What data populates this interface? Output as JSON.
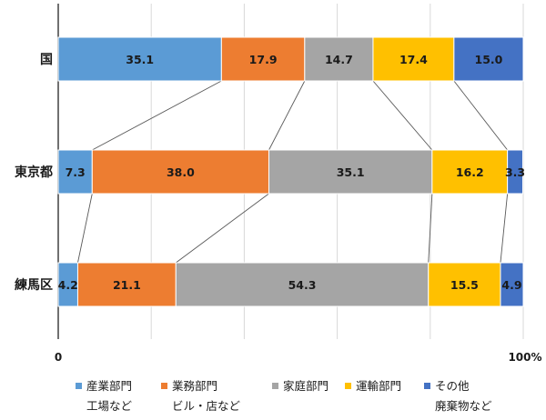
{
  "chart_data": {
    "type": "bar",
    "orientation": "horizontal",
    "stacked": true,
    "percent": true,
    "categories": [
      "国",
      "東京都",
      "練馬区"
    ],
    "series": [
      {
        "name": "産業部門",
        "sublabel": "工場など",
        "color": "#5B9BD5",
        "values": [
          35.1,
          7.3,
          4.2
        ]
      },
      {
        "name": "業務部門",
        "sublabel": "ビル・店など",
        "color": "#ED7D31",
        "values": [
          17.9,
          38.0,
          21.1
        ]
      },
      {
        "name": "家庭部門",
        "sublabel": "",
        "color": "#A5A5A5",
        "values": [
          14.7,
          35.1,
          54.3
        ]
      },
      {
        "name": "運輸部門",
        "sublabel": "",
        "color": "#FFC000",
        "values": [
          17.4,
          16.2,
          15.5
        ]
      },
      {
        "name": "その他",
        "sublabel": "廃棄物など",
        "color": "#4472C4",
        "values": [
          15.0,
          3.3,
          4.9
        ]
      }
    ],
    "x_axis": {
      "min": 0,
      "max": 100,
      "tick_labels": [
        "0",
        "100%"
      ]
    },
    "data_labels": [
      [
        "35.1",
        "17.9",
        "14.7",
        "17.4",
        "15.0"
      ],
      [
        "7.3",
        "38.0",
        "35.1",
        "16.2",
        "3.3"
      ],
      [
        "4.2",
        "21.1",
        "54.3",
        "15.5",
        "4.9"
      ]
    ],
    "gridlines": true,
    "connector_lines": true,
    "legend_position": "bottom"
  }
}
